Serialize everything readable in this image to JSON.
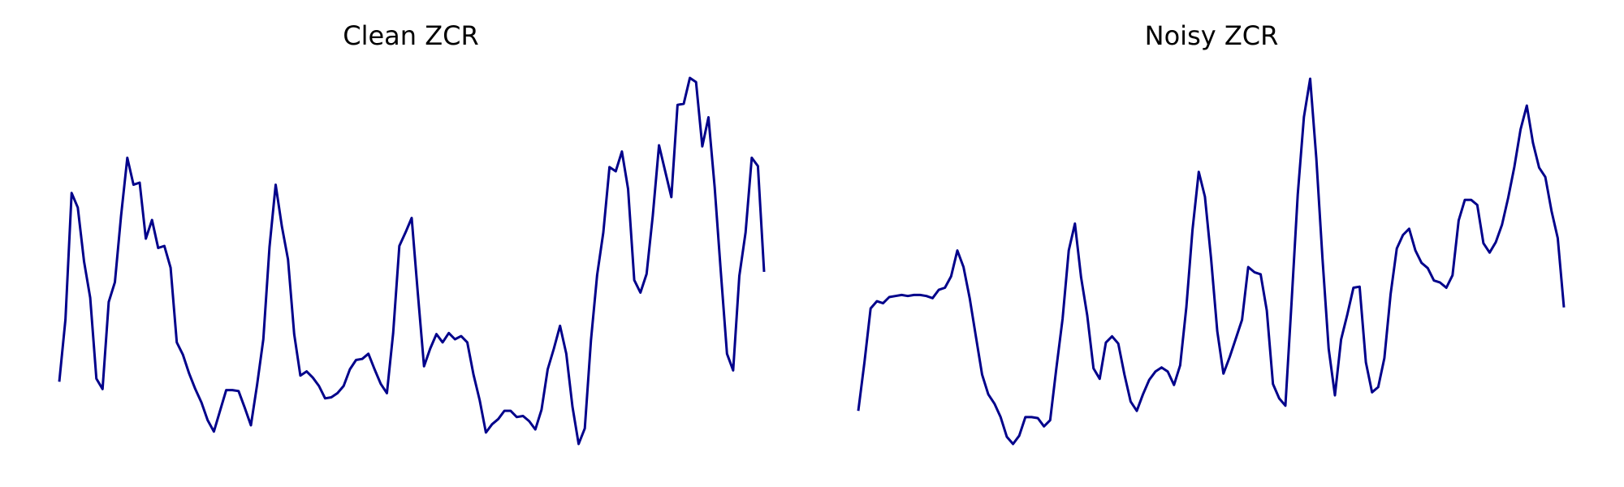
{
  "chart_data": [
    {
      "type": "line",
      "title": "Clean ZCR",
      "color": "#00008b",
      "values": [
        92,
        152,
        274,
        260,
        208,
        173,
        95,
        85,
        169,
        188,
        252,
        308,
        282,
        284,
        230,
        248,
        221,
        223,
        202,
        130,
        118,
        100,
        85,
        72,
        55,
        44,
        64,
        84,
        84,
        83,
        67,
        50,
        89,
        133,
        222,
        282,
        242,
        210,
        138,
        98,
        102,
        96,
        88,
        76,
        77,
        81,
        88,
        104,
        113,
        114,
        119,
        104,
        90,
        81,
        139,
        223,
        236,
        250,
        177,
        107,
        124,
        138,
        130,
        139,
        133,
        136,
        130,
        99,
        74,
        43,
        51,
        56,
        64,
        64,
        58,
        59,
        54,
        46,
        65,
        104,
        124,
        146,
        119,
        68,
        32,
        47,
        132,
        195,
        236,
        299,
        295,
        314,
        278,
        190,
        178,
        196,
        252,
        320,
        295,
        270,
        359,
        360,
        385,
        381,
        319,
        347,
        280,
        198,
        119,
        103,
        194,
        236,
        308,
        300,
        198
      ]
    },
    {
      "type": "line",
      "title": "Noisy ZCR",
      "color": "#00008b",
      "values": [
        63,
        110,
        162,
        169,
        167,
        173,
        174,
        175,
        174,
        175,
        175,
        174,
        172,
        180,
        182,
        193,
        218,
        202,
        172,
        135,
        98,
        79,
        70,
        57,
        38,
        31,
        39,
        57,
        57,
        56,
        48,
        54,
        104,
        152,
        218,
        244,
        192,
        155,
        104,
        94,
        129,
        135,
        128,
        98,
        72,
        63,
        79,
        93,
        101,
        105,
        101,
        88,
        107,
        163,
        238,
        294,
        270,
        210,
        140,
        99,
        115,
        133,
        151,
        202,
        197,
        195,
        160,
        89,
        75,
        68,
        168,
        272,
        347,
        384,
        307,
        210,
        123,
        78,
        132,
        156,
        182,
        183,
        110,
        81,
        86,
        114,
        176,
        220,
        233,
        239,
        218,
        206,
        201,
        189,
        187,
        182,
        194,
        247,
        267,
        267,
        262,
        225,
        216,
        226,
        243,
        269,
        299,
        335,
        358,
        322,
        298,
        289,
        256,
        230,
        163
      ]
    }
  ]
}
